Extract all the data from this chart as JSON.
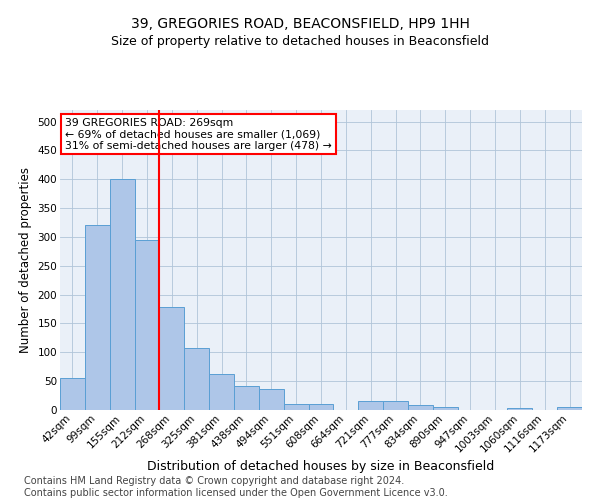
{
  "title_line1": "39, GREGORIES ROAD, BEACONSFIELD, HP9 1HH",
  "title_line2": "Size of property relative to detached houses in Beaconsfield",
  "xlabel": "Distribution of detached houses by size in Beaconsfield",
  "ylabel": "Number of detached properties",
  "footnote": "Contains HM Land Registry data © Crown copyright and database right 2024.\nContains public sector information licensed under the Open Government Licence v3.0.",
  "bar_labels": [
    "42sqm",
    "99sqm",
    "155sqm",
    "212sqm",
    "268sqm",
    "325sqm",
    "381sqm",
    "438sqm",
    "494sqm",
    "551sqm",
    "608sqm",
    "664sqm",
    "721sqm",
    "777sqm",
    "834sqm",
    "890sqm",
    "947sqm",
    "1003sqm",
    "1060sqm",
    "1116sqm",
    "1173sqm"
  ],
  "bar_values": [
    55,
    320,
    400,
    295,
    178,
    107,
    63,
    41,
    36,
    11,
    11,
    0,
    15,
    15,
    8,
    5,
    0,
    0,
    4,
    0,
    5
  ],
  "bar_color": "#aec6e8",
  "bar_edgecolor": "#5a9fd4",
  "vline_x": 3.5,
  "vline_color": "red",
  "annotation_text": "39 GREGORIES ROAD: 269sqm\n← 69% of detached houses are smaller (1,069)\n31% of semi-detached houses are larger (478) →",
  "annotation_box_edgecolor": "red",
  "annotation_box_facecolor": "white",
  "ylim": [
    0,
    520
  ],
  "yticks": [
    0,
    50,
    100,
    150,
    200,
    250,
    300,
    350,
    400,
    450,
    500
  ],
  "grid_color": "#b0c4d8",
  "background_color": "#eaf0f8",
  "title_fontsize": 10,
  "subtitle_fontsize": 9,
  "xlabel_fontsize": 9,
  "ylabel_fontsize": 8.5,
  "tick_fontsize": 7.5,
  "footnote_fontsize": 7
}
